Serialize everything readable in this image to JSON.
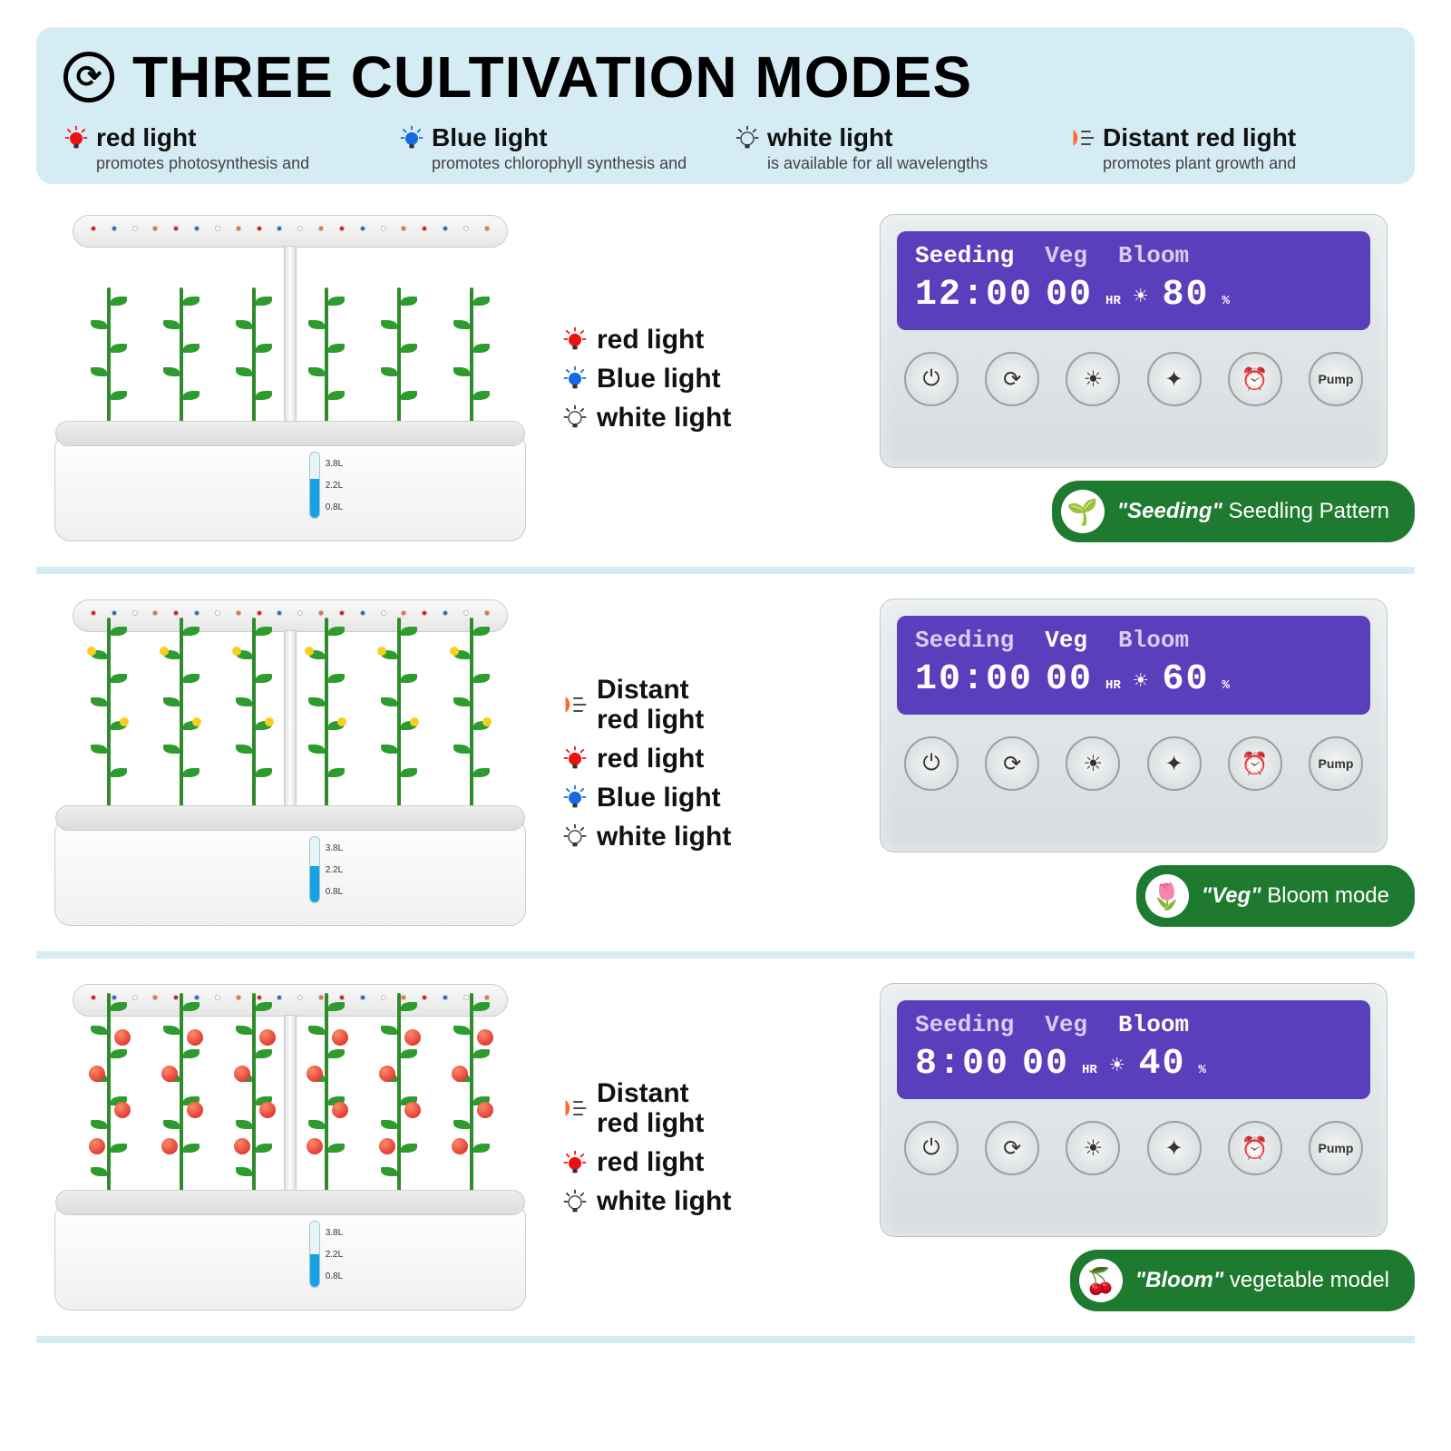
{
  "header": {
    "title": "THREE CULTIVATION MODES",
    "bg_color": "#d6ecf5",
    "legend": [
      {
        "name": "red light",
        "desc": "promotes photosynthesis and",
        "icon_color": "#e11",
        "icon": "bulb"
      },
      {
        "name": "Blue light",
        "desc": "promotes chlorophyll synthesis and",
        "icon_color": "#1769e0",
        "icon": "bulb"
      },
      {
        "name": "white light",
        "desc": "is available for all wavelengths",
        "icon_color": "#ffffff",
        "icon": "bulb-outline"
      },
      {
        "name": "Distant red light",
        "desc": "promotes plant growth and",
        "icon_color": "#ff6a2a",
        "icon": "distant"
      }
    ]
  },
  "modes": [
    {
      "lights": [
        {
          "label": "red light",
          "icon": "bulb",
          "color": "#e11"
        },
        {
          "label": "Blue light",
          "icon": "bulb",
          "color": "#1769e0"
        },
        {
          "label": "white light",
          "icon": "bulb-outline",
          "color": "#ffffff"
        }
      ],
      "planter": {
        "stage": "seedling",
        "stem_height": 170,
        "water_pct": 60,
        "has_fruit": false,
        "has_flower": false
      },
      "panel": {
        "tabs": [
          "Seeding",
          "Veg",
          "Bloom"
        ],
        "active": 0,
        "time": "12:00",
        "hr": "00",
        "pct": "80",
        "screen_bg": "#5a3fbd"
      },
      "badge": {
        "quote": "Seeding",
        "rest": "Seedling Pattern",
        "icon": "🌱"
      }
    },
    {
      "lights": [
        {
          "label": "Distant red light",
          "icon": "distant",
          "color": "#ff6a2a",
          "two_line": true
        },
        {
          "label": "red light",
          "icon": "bulb",
          "color": "#e11"
        },
        {
          "label": "Blue light",
          "icon": "bulb",
          "color": "#1769e0"
        },
        {
          "label": "white light",
          "icon": "bulb-outline",
          "color": "#ffffff"
        }
      ],
      "planter": {
        "stage": "veg",
        "stem_height": 230,
        "water_pct": 55,
        "has_fruit": false,
        "has_flower": true
      },
      "panel": {
        "tabs": [
          "Seeding",
          "Veg",
          "Bloom"
        ],
        "active": 1,
        "time": "10:00",
        "hr": "00",
        "pct": "60",
        "screen_bg": "#5a3fbd"
      },
      "badge": {
        "quote": "Veg",
        "rest": "Bloom mode",
        "icon": "🌷"
      }
    },
    {
      "lights": [
        {
          "label": "Distant red light",
          "icon": "distant",
          "color": "#ff6a2a",
          "two_line": true
        },
        {
          "label": "red light",
          "icon": "bulb",
          "color": "#e11"
        },
        {
          "label": "white light",
          "icon": "bulb-outline",
          "color": "#ffffff"
        }
      ],
      "planter": {
        "stage": "bloom",
        "stem_height": 240,
        "water_pct": 50,
        "has_fruit": true,
        "has_flower": false
      },
      "panel": {
        "tabs": [
          "Seeding",
          "Veg",
          "Bloom"
        ],
        "active": 2,
        "time": "8:00",
        "hr": "00",
        "pct": "40",
        "screen_bg": "#5a3fbd"
      },
      "badge": {
        "quote": "Bloom",
        "rest": "vegetable model",
        "icon": "🍒"
      }
    }
  ],
  "gauge_labels": [
    "3.8L",
    "2.2L",
    "0.8L"
  ],
  "panel_buttons": [
    "⏻",
    "⟳",
    "☀",
    "✦",
    "⏰",
    "Pump"
  ],
  "colors": {
    "divider": "#d6ecf5",
    "badge_bg": "#1e7a2f",
    "plant_green": "#2e9b2e",
    "fruit_red": "#d61f1f"
  }
}
